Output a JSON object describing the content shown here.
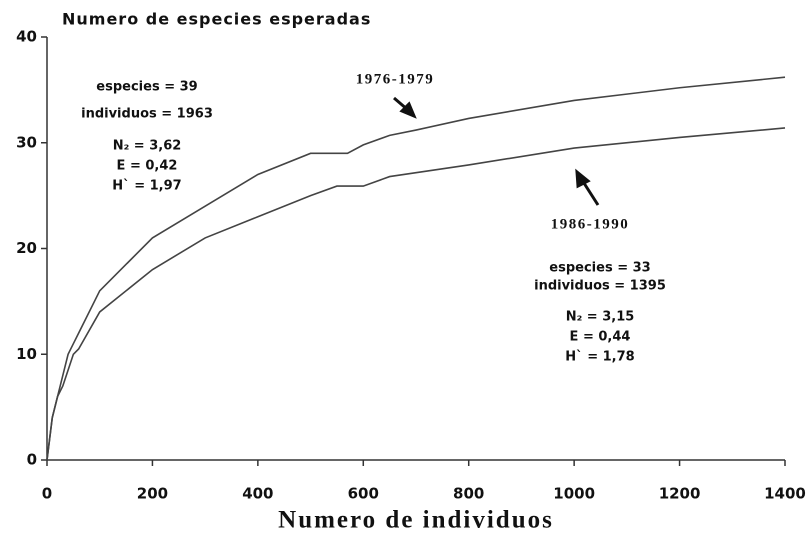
{
  "chart_data": {
    "type": "line",
    "title": "Numero de especies esperadas",
    "xlabel": "Numero de individuos",
    "xlim": [
      0,
      1400
    ],
    "xticks": [
      0,
      200,
      400,
      600,
      800,
      1000,
      1200,
      1400
    ],
    "ylim": [
      0,
      40
    ],
    "yticks": [
      0,
      10,
      20,
      30,
      40
    ],
    "grid": false,
    "series": [
      {
        "name": "1976-1979",
        "color": "#444444",
        "x": [
          0,
          10,
          20,
          30,
          40,
          50,
          60,
          100,
          200,
          300,
          400,
          500,
          570,
          600,
          650,
          700,
          800,
          1000,
          1200,
          1400
        ],
        "values": [
          0,
          4,
          6,
          8,
          10,
          11,
          12,
          16,
          21,
          24,
          27,
          29,
          29,
          29.8,
          30.7,
          31.2,
          32.3,
          34,
          35.2,
          36.2
        ]
      },
      {
        "name": "1986-1990",
        "color": "#444444",
        "x": [
          0,
          10,
          20,
          30,
          40,
          50,
          60,
          100,
          200,
          300,
          400,
          500,
          550,
          600,
          650,
          800,
          1000,
          1200,
          1400
        ],
        "values": [
          0,
          4,
          6,
          7,
          8.5,
          10,
          10.5,
          14,
          18,
          21,
          23,
          25,
          25.9,
          25.9,
          26.8,
          27.9,
          29.5,
          30.5,
          31.4
        ]
      }
    ],
    "annotations": [
      {
        "lines": [
          "especies = 39",
          "individuos = 1963",
          "N₂ = 3,62",
          "E = 0,42",
          "H` = 1,97"
        ]
      },
      {
        "lines": [
          "especies = 33",
          "individuos = 1395",
          "N₂ = 3,15",
          "E = 0,44",
          "H` = 1,78"
        ]
      }
    ]
  }
}
